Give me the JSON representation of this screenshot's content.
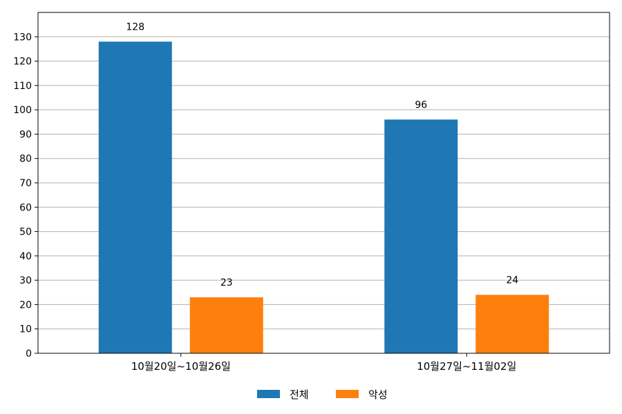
{
  "chart_data": {
    "type": "bar",
    "categories": [
      "10월20일~10월26일",
      "10월27일~11월02일"
    ],
    "series": [
      {
        "name": "전체",
        "color": "#1f77b4",
        "values": [
          128,
          96
        ]
      },
      {
        "name": "악성",
        "color": "#ff7f0e",
        "values": [
          23,
          24
        ]
      }
    ],
    "ylim": [
      0,
      140
    ],
    "yticks": [
      0,
      10,
      20,
      30,
      40,
      50,
      60,
      70,
      80,
      90,
      100,
      110,
      120,
      130
    ],
    "grid": true,
    "legend_position": "bottom-center",
    "data_labels": true,
    "title": "",
    "xlabel": "",
    "ylabel": ""
  }
}
